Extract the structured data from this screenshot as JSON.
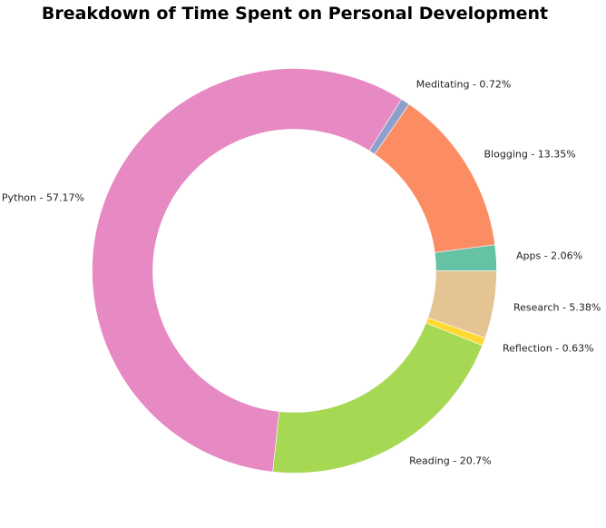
{
  "chart_data": {
    "type": "pie",
    "title": "Breakdown of Time Spent on Personal Development",
    "slices": [
      {
        "label": "Apps",
        "value": 2.06,
        "display": "Apps - 2.06%",
        "color": "#66c2a5"
      },
      {
        "label": "Blogging",
        "value": 13.35,
        "display": "Blogging - 13.35%",
        "color": "#fc8d62"
      },
      {
        "label": "Meditating",
        "value": 0.72,
        "display": "Meditating - 0.72%",
        "color": "#8da0cb"
      },
      {
        "label": "Python",
        "value": 57.17,
        "display": "Python - 57.17%",
        "color": "#e78ac3"
      },
      {
        "label": "Reading",
        "value": 20.7,
        "display": "Reading - 20.7%",
        "color": "#a6d854"
      },
      {
        "label": "Reflection",
        "value": 0.63,
        "display": "Reflection - 0.63%",
        "color": "#ffd92f"
      },
      {
        "label": "Research",
        "value": 5.38,
        "display": "Research - 5.38%",
        "color": "#e5c494"
      }
    ],
    "start_angle_deg": 0,
    "direction": "counterclockwise",
    "donut": true,
    "legend": "none"
  }
}
